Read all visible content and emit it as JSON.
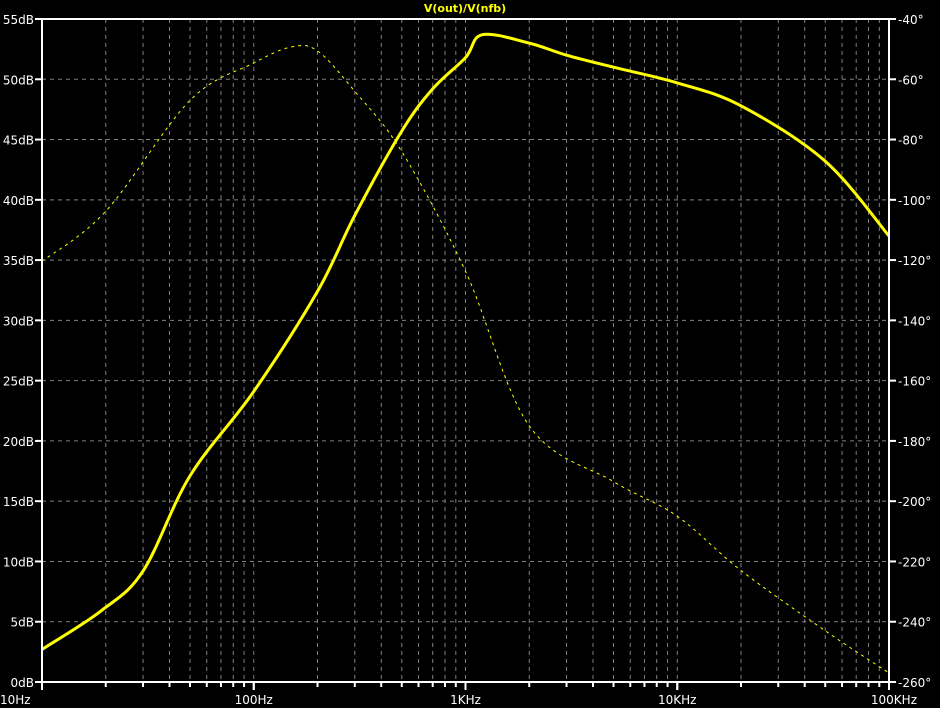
{
  "chart_data": {
    "type": "line",
    "title": "V(out)/V(nfb)",
    "x_scale": "log",
    "xlim": [
      10,
      100000
    ],
    "x_ticks": [
      {
        "v": 10,
        "label": "10Hz"
      },
      {
        "v": 100,
        "label": "100Hz"
      },
      {
        "v": 1000,
        "label": "1KHz"
      },
      {
        "v": 10000,
        "label": "10KHz"
      },
      {
        "v": 100000,
        "label": "100KHz"
      }
    ],
    "ylim_left": [
      0,
      55
    ],
    "y_ticks_left": [
      {
        "v": 0,
        "label": "0dB"
      },
      {
        "v": 5,
        "label": "5dB"
      },
      {
        "v": 10,
        "label": "10dB"
      },
      {
        "v": 15,
        "label": "15dB"
      },
      {
        "v": 20,
        "label": "20dB"
      },
      {
        "v": 25,
        "label": "25dB"
      },
      {
        "v": 30,
        "label": "30dB"
      },
      {
        "v": 35,
        "label": "35dB"
      },
      {
        "v": 40,
        "label": "40dB"
      },
      {
        "v": 45,
        "label": "45dB"
      },
      {
        "v": 50,
        "label": "50dB"
      },
      {
        "v": 55,
        "label": "55dB"
      }
    ],
    "ylim_right": [
      -260,
      -40
    ],
    "y_ticks_right": [
      {
        "v": -40,
        "label": "-40°"
      },
      {
        "v": -60,
        "label": "-60°"
      },
      {
        "v": -80,
        "label": "-80°"
      },
      {
        "v": -100,
        "label": "-100°"
      },
      {
        "v": -120,
        "label": "-120°"
      },
      {
        "v": -140,
        "label": "-140°"
      },
      {
        "v": -160,
        "label": "-160°"
      },
      {
        "v": -180,
        "label": "-180°"
      },
      {
        "v": -200,
        "label": "-200°"
      },
      {
        "v": -220,
        "label": "-220°"
      },
      {
        "v": -240,
        "label": "-240°"
      },
      {
        "v": -260,
        "label": "-260°"
      }
    ],
    "grid": true,
    "colors": {
      "background": "#000000",
      "trace": "#ffff00",
      "axes": "#ffffff",
      "grid": "#808080"
    },
    "series": [
      {
        "quantity": "magnitude",
        "axis": "left",
        "style": "solid",
        "x": [
          10,
          19,
          30,
          50,
          100,
          200,
          300,
          500,
          700,
          1000,
          1200,
          2000,
          3000,
          5000,
          10000,
          20000,
          50000,
          100000
        ],
        "y": [
          2.7,
          5.9,
          9.2,
          17.1,
          24.1,
          32.4,
          38.7,
          45.7,
          49.2,
          51.8,
          53.7,
          53.0,
          52.0,
          51.0,
          49.7,
          47.8,
          43.2,
          37.0
        ]
      },
      {
        "quantity": "phase",
        "axis": "right",
        "style": "dotted",
        "x": [
          10,
          20,
          50,
          100,
          150,
          200,
          300,
          500,
          1000,
          2000,
          5000,
          10000,
          20000,
          50000,
          100000
        ],
        "y": [
          -120.4,
          -103.8,
          -67,
          -54.6,
          -49.3,
          -50.6,
          -64,
          -84,
          -123.7,
          -175,
          -193.5,
          -205,
          -223,
          -243,
          -257
        ]
      }
    ]
  }
}
